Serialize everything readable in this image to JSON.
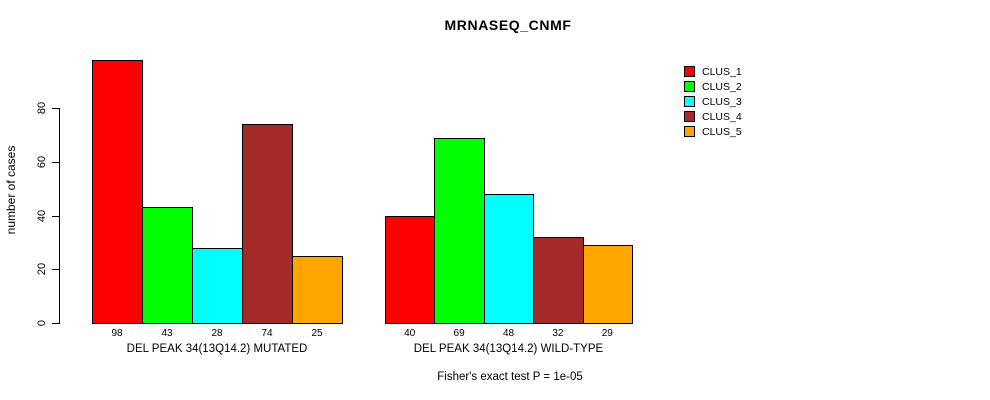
{
  "title": "MRNASEQ_CNMF",
  "footer": "Fisher's exact test P = 1e-05",
  "y_axis": {
    "label": "number of cases",
    "ticks": [
      0,
      20,
      40,
      60,
      80
    ]
  },
  "legend": {
    "items": [
      {
        "label": "CLUS_1",
        "color": "#FF0000"
      },
      {
        "label": "CLUS_2",
        "color": "#00FF00"
      },
      {
        "label": "CLUS_3",
        "color": "#00FFFF"
      },
      {
        "label": "CLUS_4",
        "color": "#A52A2A"
      },
      {
        "label": "CLUS_5",
        "color": "#FFA500"
      }
    ]
  },
  "chart_data": {
    "type": "bar",
    "title": "MRNASEQ_CNMF",
    "xlabel": "",
    "ylabel": "number of cases",
    "ylim": [
      0,
      98
    ],
    "yticks": [
      0,
      20,
      40,
      60,
      80
    ],
    "grid": false,
    "legend_position": "right",
    "categories": [
      "DEL PEAK 34(13Q14.2) MUTATED",
      "DEL PEAK 34(13Q14.2) WILD-TYPE"
    ],
    "series": [
      {
        "name": "CLUS_1",
        "color": "#FF0000",
        "values": [
          98,
          40
        ]
      },
      {
        "name": "CLUS_2",
        "color": "#00FF00",
        "values": [
          43,
          69
        ]
      },
      {
        "name": "CLUS_3",
        "color": "#00FFFF",
        "values": [
          28,
          48
        ]
      },
      {
        "name": "CLUS_4",
        "color": "#A52A2A",
        "values": [
          74,
          32
        ]
      },
      {
        "name": "CLUS_5",
        "color": "#FFA500",
        "values": [
          25,
          29
        ]
      }
    ],
    "bar_value_labels": [
      [
        98,
        43,
        28,
        74,
        25
      ],
      [
        40,
        69,
        48,
        32,
        29
      ]
    ],
    "annotation": "Fisher's exact test P = 1e-05"
  }
}
